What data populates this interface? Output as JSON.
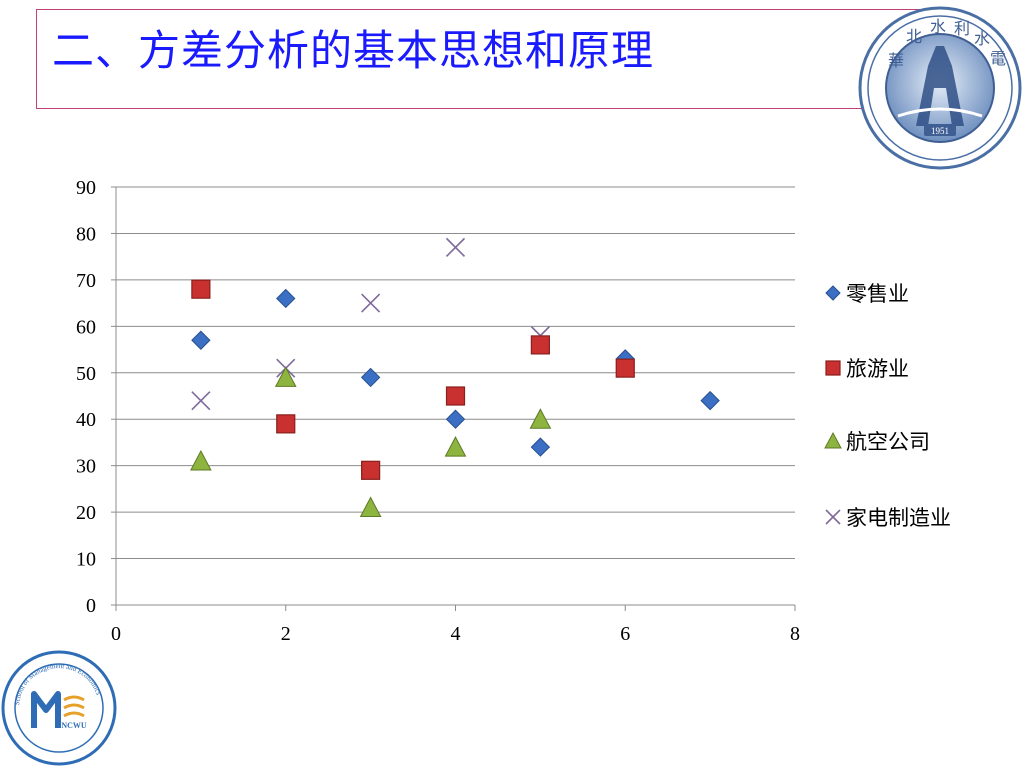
{
  "slide": {
    "title": "二、方差分析的基本思想和原理"
  },
  "logos": {
    "top_right": {
      "year_text": "1951"
    },
    "bottom_left": {
      "ring_text": "School of Management and Economics",
      "monogram": "NCWU"
    }
  },
  "chart_data": {
    "type": "scatter",
    "title": "",
    "xlabel": "",
    "ylabel": "",
    "xlim": [
      0,
      8
    ],
    "ylim": [
      0,
      90
    ],
    "x_ticks": [
      0,
      2,
      4,
      6,
      8
    ],
    "y_ticks": [
      0,
      10,
      20,
      30,
      40,
      50,
      60,
      70,
      80,
      90
    ],
    "grid": "horizontal",
    "legend_position": "right",
    "series": [
      {
        "name": "零售业",
        "marker": "diamond",
        "color": "#3a6fc4",
        "points": [
          [
            1,
            57
          ],
          [
            2,
            66
          ],
          [
            3,
            49
          ],
          [
            4,
            40
          ],
          [
            5,
            34
          ],
          [
            6,
            53
          ],
          [
            7,
            44
          ]
        ]
      },
      {
        "name": "旅游业",
        "marker": "square",
        "color": "#c8312f",
        "points": [
          [
            1,
            68
          ],
          [
            2,
            39
          ],
          [
            3,
            29
          ],
          [
            4,
            45
          ],
          [
            5,
            56
          ],
          [
            6,
            51
          ]
        ]
      },
      {
        "name": "航空公司",
        "marker": "triangle",
        "color": "#8db43e",
        "points": [
          [
            1,
            31
          ],
          [
            2,
            49
          ],
          [
            3,
            21
          ],
          [
            4,
            34
          ],
          [
            5,
            40
          ]
        ]
      },
      {
        "name": "家电制造业",
        "marker": "cross",
        "color": "#7f6a9a",
        "points": [
          [
            1,
            44
          ],
          [
            2,
            51
          ],
          [
            3,
            65
          ],
          [
            4,
            77
          ],
          [
            5,
            58
          ]
        ]
      }
    ]
  }
}
